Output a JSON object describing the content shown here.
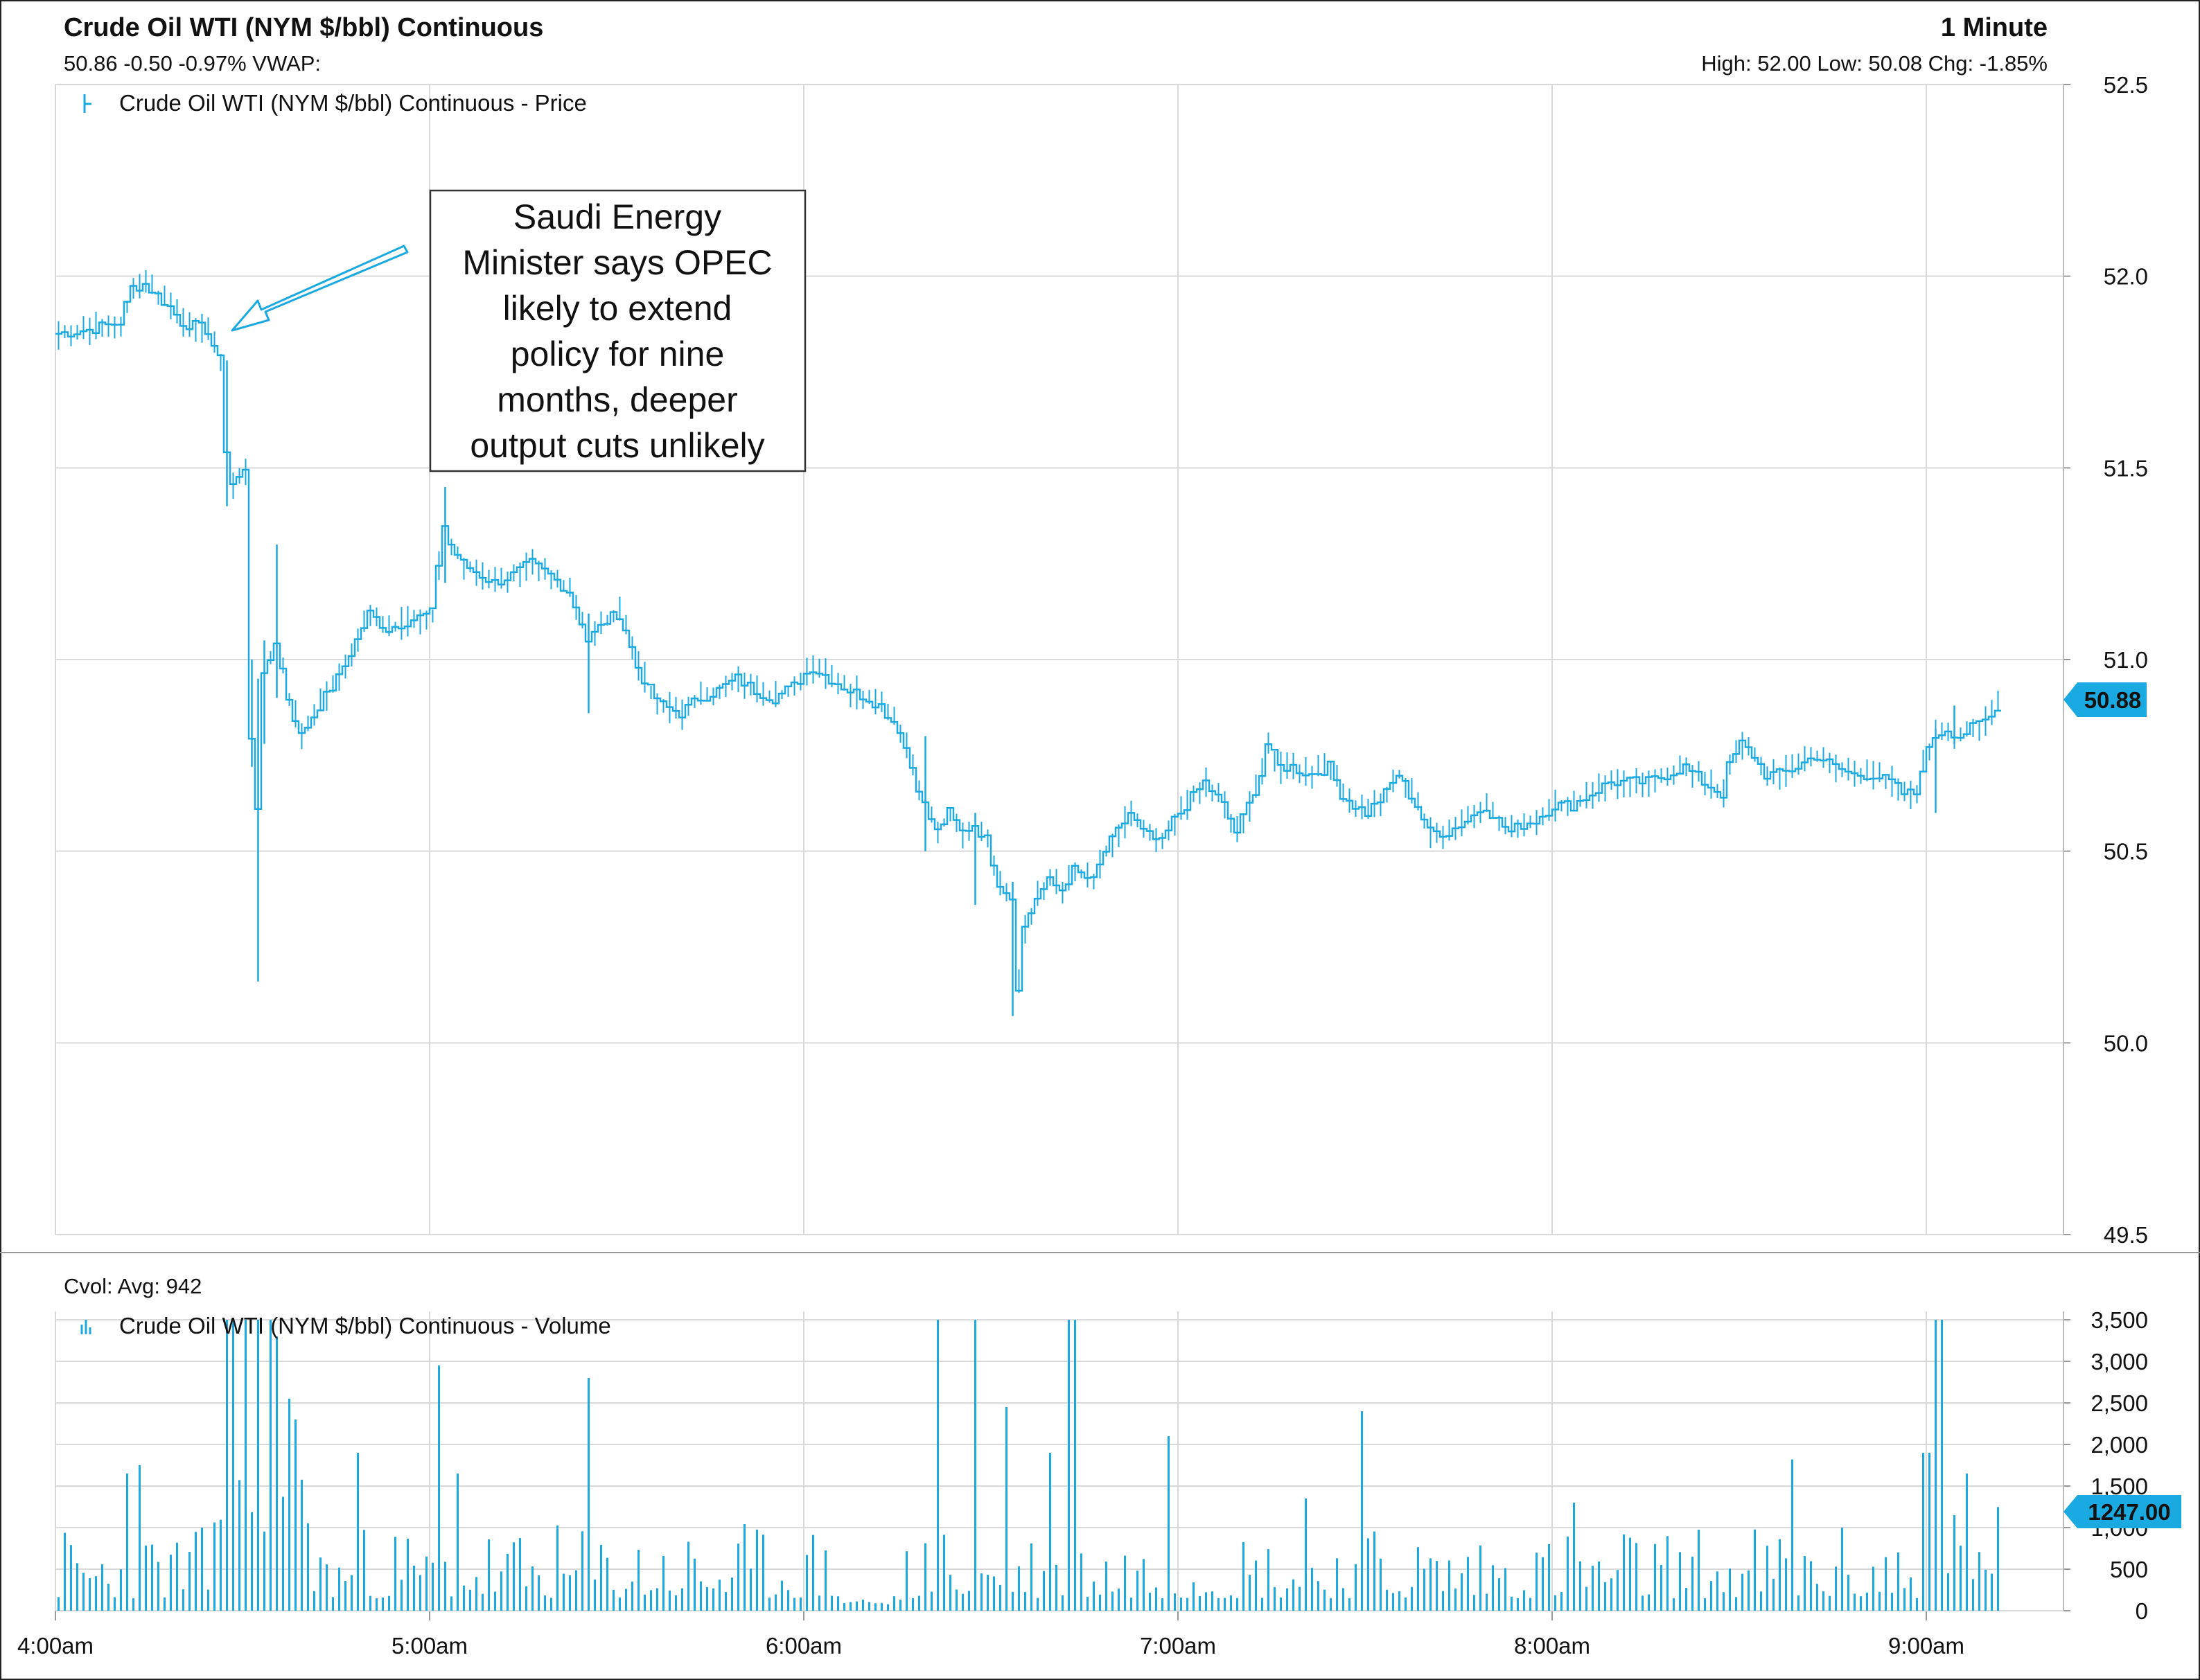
{
  "header": {
    "title": "Crude Oil WTI (NYM $/bbl) Continuous",
    "interval": "1 Minute",
    "quote_line": "50.86 -0.50 -0.97% VWAP:",
    "range_line": "High: 52.00 Low: 50.08 Chg: -1.85%"
  },
  "price_panel": {
    "legend_label": "Crude Oil WTI (NYM $/bbl) Continuous - Price",
    "last_price_badge": "50.88",
    "annotation_lines": [
      "Saudi Energy",
      "Minister says OPEC",
      "likely to extend",
      "policy for nine",
      "months, deeper",
      "output cuts unlikely"
    ]
  },
  "volume_panel": {
    "cvol_label": "Cvol: Avg: 942",
    "legend_label": "Crude Oil WTI (NYM $/bbl) Continuous - Volume",
    "last_volume_badge": "1247.00"
  },
  "colors": {
    "series": "#1aa9e0",
    "grid": "#d9d9d9",
    "badge": "#1aa9e0",
    "text": "#111111"
  },
  "chart_data": [
    {
      "type": "line",
      "name": "Crude Oil WTI (NYM $/bbl) Continuous - Price",
      "x_unit": "minutes after 4:00am",
      "ylim": [
        49.5,
        52.5
      ],
      "y_ticks": [
        "52.5",
        "52.0",
        "51.5",
        "51.0",
        "50.5",
        "50.0",
        "49.5"
      ],
      "x_ticks": [
        "4:00am",
        "5:00am",
        "6:00am",
        "7:00am",
        "8:00am",
        "9:00am"
      ],
      "grid": true,
      "points": [
        [
          0,
          51.85
        ],
        [
          5,
          51.86
        ],
        [
          10,
          51.88
        ],
        [
          12,
          51.97
        ],
        [
          14,
          51.98
        ],
        [
          16,
          51.95
        ],
        [
          18,
          51.92
        ],
        [
          20,
          51.88
        ],
        [
          22,
          51.87
        ],
        [
          24,
          51.86
        ],
        [
          26,
          51.78
        ],
        [
          27,
          51.55
        ],
        [
          28,
          51.46
        ],
        [
          30,
          51.49
        ],
        [
          31,
          50.8
        ],
        [
          32,
          50.62
        ],
        [
          33,
          50.95
        ],
        [
          35,
          51.05
        ],
        [
          37,
          50.9
        ],
        [
          39,
          50.8
        ],
        [
          42,
          50.88
        ],
        [
          45,
          50.95
        ],
        [
          48,
          51.05
        ],
        [
          50,
          51.12
        ],
        [
          53,
          51.08
        ],
        [
          56,
          51.1
        ],
        [
          60,
          51.12
        ],
        [
          61,
          51.25
        ],
        [
          62,
          51.35
        ],
        [
          63,
          51.3
        ],
        [
          65,
          51.25
        ],
        [
          68,
          51.22
        ],
        [
          70,
          51.2
        ],
        [
          73,
          51.22
        ],
        [
          76,
          51.25
        ],
        [
          79,
          51.22
        ],
        [
          82,
          51.18
        ],
        [
          84,
          51.1
        ],
        [
          85,
          51.05
        ],
        [
          88,
          51.1
        ],
        [
          90,
          51.12
        ],
        [
          91,
          51.08
        ],
        [
          93,
          50.98
        ],
        [
          95,
          50.92
        ],
        [
          97,
          50.88
        ],
        [
          100,
          50.86
        ],
        [
          103,
          50.9
        ],
        [
          106,
          50.92
        ],
        [
          109,
          50.95
        ],
        [
          112,
          50.92
        ],
        [
          115,
          50.9
        ],
        [
          118,
          50.93
        ],
        [
          121,
          50.98
        ],
        [
          124,
          50.95
        ],
        [
          127,
          50.92
        ],
        [
          130,
          50.9
        ],
        [
          132,
          50.88
        ],
        [
          135,
          50.82
        ],
        [
          137,
          50.72
        ],
        [
          139,
          50.62
        ],
        [
          141,
          50.55
        ],
        [
          143,
          50.6
        ],
        [
          145,
          50.55
        ],
        [
          147,
          50.57
        ],
        [
          149,
          50.53
        ],
        [
          151,
          50.42
        ],
        [
          153,
          50.38
        ],
        [
          154,
          50.15
        ],
        [
          155,
          50.3
        ],
        [
          157,
          50.38
        ],
        [
          159,
          50.42
        ],
        [
          161,
          50.4
        ],
        [
          163,
          50.45
        ],
        [
          166,
          50.42
        ],
        [
          168,
          50.5
        ],
        [
          170,
          50.55
        ],
        [
          172,
          50.6
        ],
        [
          174,
          50.55
        ],
        [
          177,
          50.52
        ],
        [
          179,
          50.58
        ],
        [
          181,
          50.62
        ],
        [
          184,
          50.68
        ],
        [
          187,
          50.62
        ],
        [
          189,
          50.55
        ],
        [
          191,
          50.62
        ],
        [
          193,
          50.7
        ],
        [
          194,
          50.78
        ],
        [
          196,
          50.72
        ],
        [
          198,
          50.72
        ],
        [
          201,
          50.7
        ],
        [
          204,
          50.72
        ],
        [
          206,
          50.65
        ],
        [
          208,
          50.62
        ],
        [
          210,
          50.6
        ],
        [
          213,
          50.65
        ],
        [
          215,
          50.7
        ],
        [
          218,
          50.62
        ],
        [
          220,
          50.55
        ],
        [
          223,
          50.55
        ],
        [
          226,
          50.58
        ],
        [
          229,
          50.62
        ],
        [
          231,
          50.58
        ],
        [
          233,
          50.55
        ],
        [
          235,
          50.57
        ],
        [
          237,
          50.58
        ],
        [
          240,
          50.62
        ],
        [
          243,
          50.62
        ],
        [
          246,
          50.65
        ],
        [
          249,
          50.68
        ],
        [
          252,
          50.68
        ],
        [
          255,
          50.68
        ],
        [
          258,
          50.7
        ],
        [
          261,
          50.72
        ],
        [
          264,
          50.68
        ],
        [
          267,
          50.65
        ],
        [
          268,
          50.72
        ],
        [
          270,
          50.78
        ],
        [
          272,
          50.75
        ],
        [
          274,
          50.7
        ],
        [
          276,
          50.7
        ],
        [
          279,
          50.72
        ],
        [
          282,
          50.75
        ],
        [
          285,
          50.72
        ],
        [
          288,
          50.7
        ],
        [
          291,
          50.7
        ],
        [
          294,
          50.68
        ],
        [
          296,
          50.65
        ],
        [
          298,
          50.65
        ],
        [
          299,
          50.72
        ],
        [
          301,
          50.8
        ],
        [
          303,
          50.82
        ],
        [
          305,
          50.8
        ],
        [
          307,
          50.82
        ],
        [
          310,
          50.85
        ],
        [
          311,
          50.88
        ]
      ]
    },
    {
      "type": "bar",
      "name": "Crude Oil WTI (NYM $/bbl) Continuous - Volume",
      "x_unit": "minutes after 4:00am",
      "ylim": [
        0,
        3500
      ],
      "y_ticks": [
        "3,500",
        "3,000",
        "2,500",
        "2,000",
        "1,500",
        "1,000",
        "500",
        "0"
      ],
      "average": 942,
      "spikes": [
        [
          11,
          1650
        ],
        [
          13,
          1750
        ],
        [
          27,
          3500
        ],
        [
          28,
          3500
        ],
        [
          30,
          3500
        ],
        [
          32,
          3500
        ],
        [
          34,
          3500
        ],
        [
          35,
          3300
        ],
        [
          37,
          2550
        ],
        [
          38,
          2300
        ],
        [
          48,
          1900
        ],
        [
          61,
          2950
        ],
        [
          64,
          1650
        ],
        [
          85,
          2800
        ],
        [
          141,
          3500
        ],
        [
          147,
          3500
        ],
        [
          152,
          2450
        ],
        [
          159,
          1900
        ],
        [
          162,
          3500
        ],
        [
          163,
          3500
        ],
        [
          178,
          2100
        ],
        [
          200,
          1350
        ],
        [
          209,
          2400
        ],
        [
          243,
          1300
        ],
        [
          278,
          1820
        ],
        [
          299,
          1900
        ],
        [
          300,
          1900
        ],
        [
          301,
          3500
        ],
        [
          302,
          3500
        ],
        [
          304,
          1150
        ],
        [
          306,
          1650
        ],
        [
          311,
          1247
        ]
      ]
    }
  ]
}
